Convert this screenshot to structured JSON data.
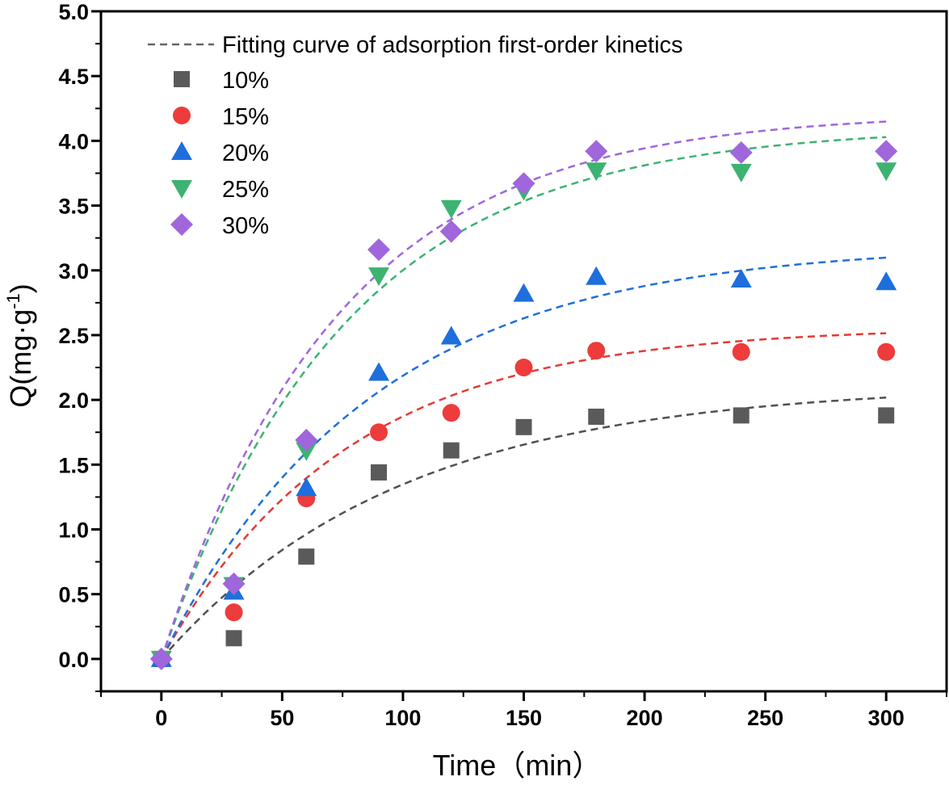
{
  "chart_data": {
    "type": "scatter",
    "xlabel": "Time（min）",
    "ylabel": {
      "main": "Q(mg·g",
      "sup": "-1",
      "close": ")"
    },
    "xlim": [
      -25,
      325
    ],
    "ylim": [
      -0.25,
      5.0
    ],
    "xticks": [
      0,
      50,
      100,
      150,
      200,
      250,
      300
    ],
    "xtick_labels": [
      "0",
      "50",
      "100",
      "150",
      "200",
      "250",
      "300"
    ],
    "yticks": [
      0.0,
      0.5,
      1.0,
      1.5,
      2.0,
      2.5,
      3.0,
      3.5,
      4.0,
      4.5,
      5.0
    ],
    "ytick_labels": [
      "0.0",
      "0.5",
      "1.0",
      "1.5",
      "2.0",
      "2.5",
      "3.0",
      "3.5",
      "4.0",
      "4.5",
      "5.0"
    ],
    "fit_legend_label": "Fitting curve of adsorption first-order kinetics",
    "fit_legend_color": "#666666",
    "x": [
      0,
      30,
      60,
      90,
      120,
      150,
      180,
      240,
      300
    ],
    "series": [
      {
        "name": "10%",
        "marker": "square",
        "color": "#5a5a5a",
        "fit_color": "#505050",
        "values": [
          0,
          0.16,
          0.79,
          1.44,
          1.61,
          1.79,
          1.87,
          1.88,
          1.88
        ],
        "fit": {
          "qe": 2.12,
          "k": 0.0101
        }
      },
      {
        "name": "15%",
        "marker": "circle",
        "color": "#ee3b3b",
        "fit_color": "#e53935",
        "values": [
          0,
          0.36,
          1.24,
          1.75,
          1.9,
          2.25,
          2.38,
          2.37,
          2.37
        ],
        "fit": {
          "qe": 2.565,
          "k": 0.0131
        }
      },
      {
        "name": "20%",
        "marker": "triangle-up",
        "color": "#1e6fdc",
        "fit_color": "#1e6fdc",
        "values": [
          0,
          0.52,
          1.32,
          2.21,
          2.49,
          2.82,
          2.95,
          2.93,
          2.91
        ],
        "fit": {
          "qe": 3.2,
          "k": 0.0115
        }
      },
      {
        "name": "25%",
        "marker": "triangle-down",
        "color": "#3cb371",
        "fit_color": "#3cb371",
        "values": [
          0,
          0.57,
          1.61,
          2.96,
          3.48,
          3.62,
          3.77,
          3.76,
          3.77
        ],
        "fit": {
          "qe": 4.11,
          "k": 0.0131
        }
      },
      {
        "name": "30%",
        "marker": "diamond",
        "color": "#a066dc",
        "fit_color": "#a066dc",
        "values": [
          0,
          0.58,
          1.69,
          3.16,
          3.3,
          3.67,
          3.92,
          3.91,
          3.92
        ],
        "fit": {
          "qe": 4.22,
          "k": 0.0136
        }
      }
    ]
  }
}
